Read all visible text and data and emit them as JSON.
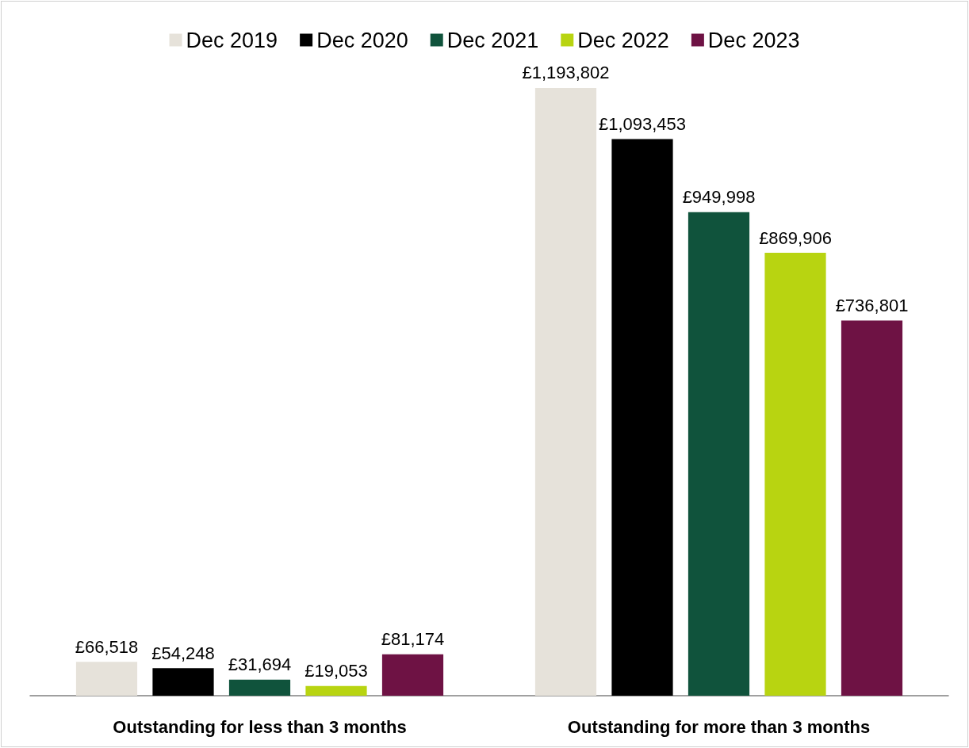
{
  "chart_data": {
    "type": "bar",
    "categories": [
      "Outstanding for less than 3 months",
      "Outstanding for more than 3 months"
    ],
    "series": [
      {
        "name": "Dec 2019",
        "color": "#e6e2da",
        "values": [
          66518,
          1193802
        ],
        "value_labels": [
          "£66,518",
          "£1,193,802"
        ]
      },
      {
        "name": "Dec 2020",
        "color": "#000000",
        "values": [
          54248,
          1093453
        ],
        "value_labels": [
          "£54,248",
          "£1,093,453"
        ]
      },
      {
        "name": "Dec 2021",
        "color": "#10533c",
        "values": [
          31694,
          949998
        ],
        "value_labels": [
          "£31,694",
          "£949,998"
        ]
      },
      {
        "name": "Dec 2022",
        "color": "#b8d411",
        "values": [
          19053,
          869906
        ],
        "value_labels": [
          "£19,053",
          "£869,906"
        ]
      },
      {
        "name": "Dec 2023",
        "color": "#6e1244",
        "values": [
          81174,
          736801
        ],
        "value_labels": [
          "£81,174",
          "£736,801"
        ]
      }
    ],
    "legend": "top",
    "grid": false
  }
}
